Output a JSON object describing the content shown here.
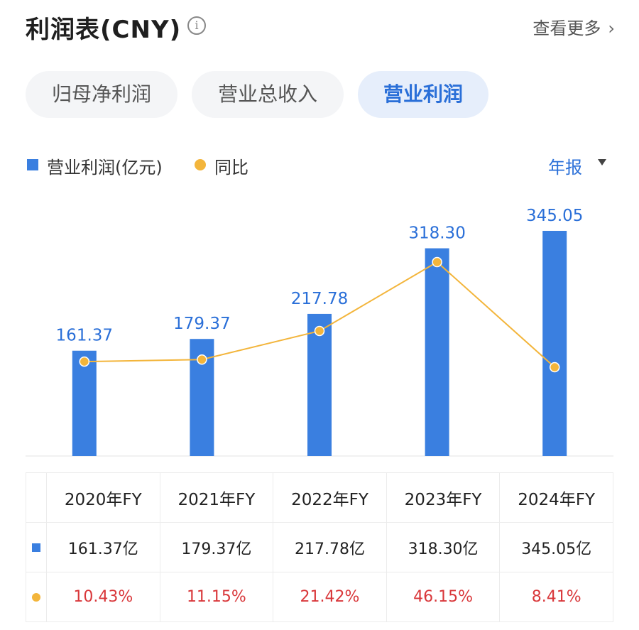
{
  "header": {
    "title": "利润表(CNY)",
    "info_icon": "i",
    "more_label": "查看更多",
    "more_chevron": "›"
  },
  "tabs": [
    {
      "label": "归母净利润",
      "active": false
    },
    {
      "label": "营业总收入",
      "active": false
    },
    {
      "label": "营业利润",
      "active": true
    }
  ],
  "legend": {
    "bar_label": "营业利润(亿元)",
    "line_label": "同比",
    "period_label": "年报"
  },
  "colors": {
    "bar": "#3a7fe0",
    "line": "#f3b53b",
    "accent": "#2a6fd8",
    "negative_text": "#d9373a"
  },
  "chart_data": {
    "type": "bar",
    "categories": [
      "2020年FY",
      "2021年FY",
      "2022年FY",
      "2023年FY",
      "2024年FY"
    ],
    "series": [
      {
        "name": "营业利润(亿元)",
        "type": "bar",
        "values": [
          161.37,
          179.37,
          217.78,
          318.3,
          345.05
        ],
        "labels": [
          "161.37",
          "179.37",
          "217.78",
          "318.30",
          "345.05"
        ]
      },
      {
        "name": "同比",
        "type": "line",
        "values": [
          10.43,
          11.15,
          21.42,
          46.15,
          8.41
        ]
      }
    ],
    "ylim": [
      0,
      345.05
    ],
    "y2lim": [
      0,
      46.15
    ],
    "grid": false,
    "legend_position": "top-left"
  },
  "table": {
    "headers": [
      "2020年FY",
      "2021年FY",
      "2022年FY",
      "2023年FY",
      "2024年FY"
    ],
    "values": [
      "161.37亿",
      "179.37亿",
      "217.78亿",
      "318.30亿",
      "345.05亿"
    ],
    "growth": [
      "10.43%",
      "11.15%",
      "21.42%",
      "46.15%",
      "8.41%"
    ]
  }
}
